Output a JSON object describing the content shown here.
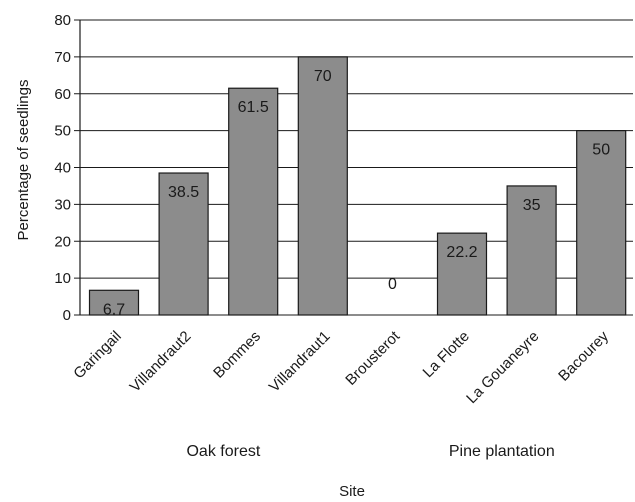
{
  "chart_data": {
    "type": "bar",
    "categories": [
      "Garingail",
      "Villandraut2",
      "Bommes",
      "Villandraut1",
      "Brousterot",
      "La Flotte",
      "La Gouaneyre",
      "Bacourey"
    ],
    "values": [
      6.7,
      38.5,
      61.5,
      70,
      0,
      22.2,
      35,
      50
    ],
    "data_labels": [
      "6.7",
      "38.5",
      "61.5",
      "70",
      "0",
      "22.2",
      "35",
      "50"
    ],
    "groups": [
      {
        "label": "Oak forest",
        "categories": [
          "Garingail",
          "Villandraut2",
          "Bommes",
          "Villandraut1"
        ]
      },
      {
        "label": "Pine plantation",
        "categories": [
          "Brousterot",
          "La Flotte",
          "La Gouaneyre",
          "Bacourey"
        ]
      }
    ],
    "xlabel": "Site",
    "ylabel": "Percentage of seedlings",
    "ylim": [
      0,
      80
    ],
    "yticks": [
      0,
      10,
      20,
      30,
      40,
      50,
      60,
      70,
      80
    ],
    "grid": "horizontal",
    "legend": "none",
    "colors": {
      "bar_fill": "#8c8c8c",
      "bar_stroke": "#1a1a1a",
      "grid": "#1a1a1a",
      "text": "#1a1a1a"
    }
  }
}
